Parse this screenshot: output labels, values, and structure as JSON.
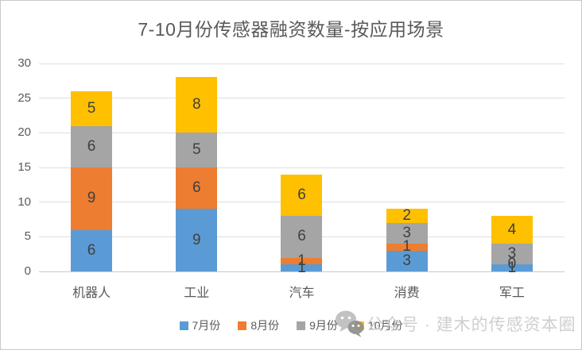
{
  "chart_data": {
    "type": "bar",
    "stacked": true,
    "title": "7-10月份传感器融资数量-按应用场景",
    "categories": [
      "机器人",
      "工业",
      "汽车",
      "消费",
      "军工"
    ],
    "series": [
      {
        "name": "7月份",
        "color": "#5B9BD5",
        "values": [
          6,
          9,
          1,
          3,
          1
        ]
      },
      {
        "name": "8月份",
        "color": "#ED7D31",
        "values": [
          9,
          6,
          1,
          1,
          0
        ]
      },
      {
        "name": "9月份",
        "color": "#A5A5A5",
        "values": [
          6,
          5,
          6,
          3,
          3
        ]
      },
      {
        "name": "10月份",
        "color": "#FFC000",
        "values": [
          5,
          8,
          6,
          2,
          4
        ]
      }
    ],
    "totals": [
      26,
      28,
      14,
      9,
      8
    ],
    "xlabel": "",
    "ylabel": "",
    "ylim": [
      0,
      30
    ],
    "yticks": [
      0,
      5,
      10,
      15,
      20,
      25,
      30
    ],
    "grid": true,
    "data_labels": true,
    "legend_position": "bottom"
  },
  "watermark": {
    "icon": "wechat-icon",
    "text": "公众号 · 建木的传感资本圈"
  },
  "colors": {
    "background": "#FFFFFF",
    "border": "#C8C8C8",
    "gridline": "#DEDEDE",
    "axis_line": "#C9C9C9",
    "tick_text": "#595959",
    "title_text": "#595959",
    "data_label_text": "#404040",
    "watermark_text": "#CBCBCB"
  }
}
